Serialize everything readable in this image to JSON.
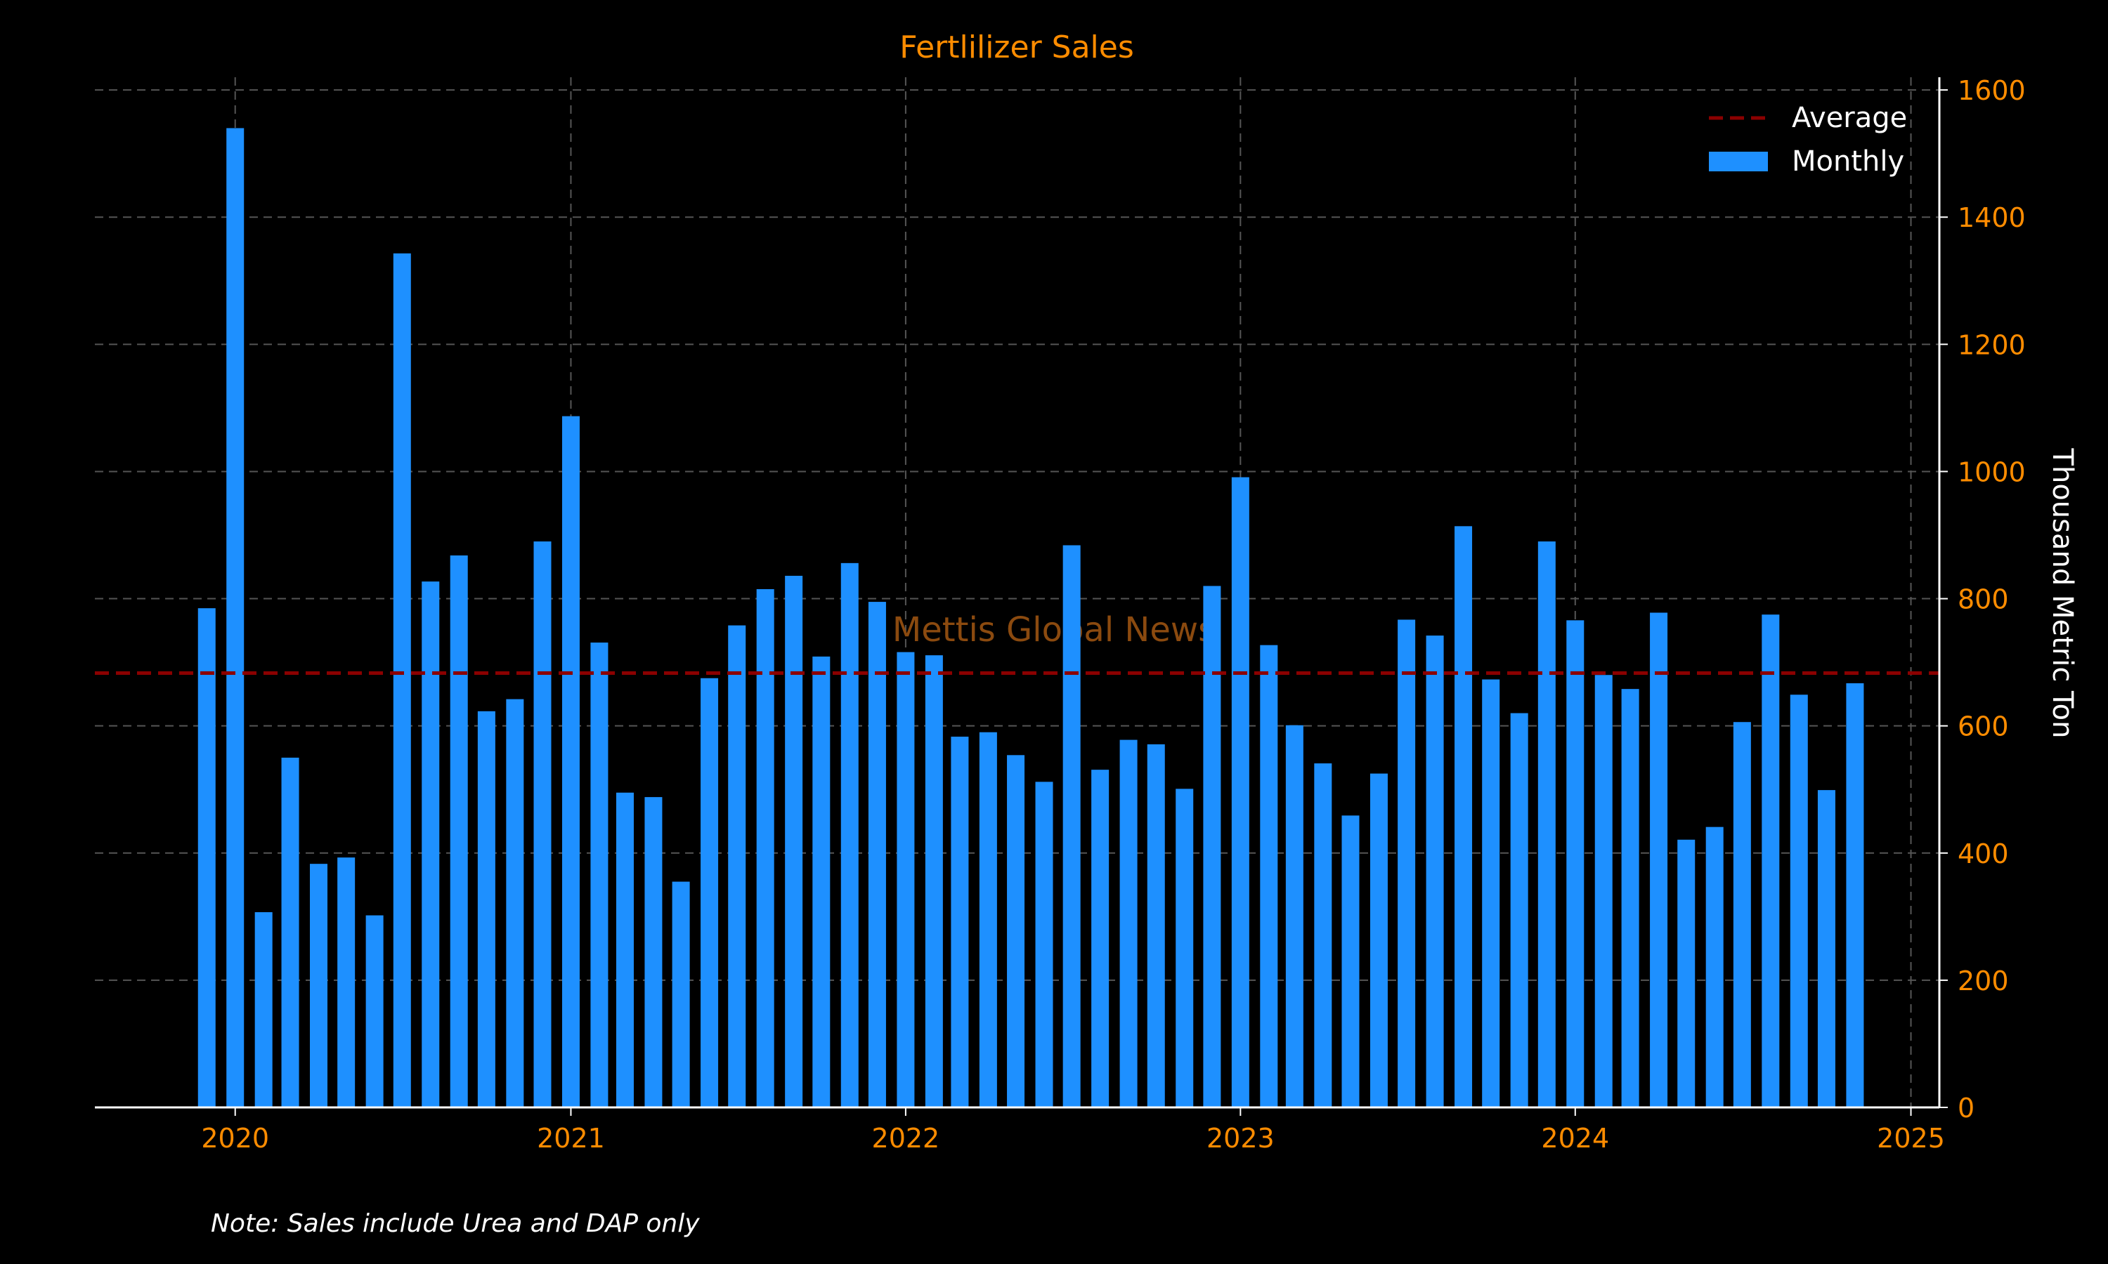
{
  "chart_data": {
    "type": "bar",
    "title": "Fertlilizer Sales",
    "xlabel": "",
    "ylabel": "Thousand Metric Ton",
    "ylim": [
      0,
      1620
    ],
    "xlim": [
      "2019-08-01",
      "2025-02-01"
    ],
    "yticks": [
      0,
      200,
      400,
      600,
      800,
      1000,
      1200,
      1400,
      1600
    ],
    "xticks": [
      "2020",
      "2021",
      "2022",
      "2023",
      "2024",
      "2025"
    ],
    "grid": true,
    "legend_position": "top-right",
    "watermark": "Mettis Global News",
    "note": "Note: Sales include Urea and DAP only",
    "colors": {
      "background": "#000000",
      "bars": "#1e90ff",
      "average": "#8b0000",
      "tick_text": "#ff8c00",
      "title": "#ff8c00",
      "label": "#ffffff",
      "grid": "#555555",
      "watermark": "#8b4a0f"
    },
    "legend": [
      {
        "name": "Average",
        "kind": "dashed-line"
      },
      {
        "name": "Monthly",
        "kind": "bar"
      }
    ],
    "average": 683,
    "dates": [
      "2019-12",
      "2020-01",
      "2020-02",
      "2020-03",
      "2020-04",
      "2020-05",
      "2020-06",
      "2020-07",
      "2020-08",
      "2020-09",
      "2020-10",
      "2020-11",
      "2020-12",
      "2021-01",
      "2021-02",
      "2021-03",
      "2021-04",
      "2021-05",
      "2021-06",
      "2021-07",
      "2021-08",
      "2021-09",
      "2021-10",
      "2021-11",
      "2021-12",
      "2022-01",
      "2022-02",
      "2022-03",
      "2022-04",
      "2022-05",
      "2022-06",
      "2022-07",
      "2022-08",
      "2022-09",
      "2022-10",
      "2022-11",
      "2022-12",
      "2023-01",
      "2023-02",
      "2023-03",
      "2023-04",
      "2023-05",
      "2023-06",
      "2023-07",
      "2023-08",
      "2023-09",
      "2023-10",
      "2023-11",
      "2023-12",
      "2024-01",
      "2024-02",
      "2024-03",
      "2024-04",
      "2024-05",
      "2024-06",
      "2024-07",
      "2024-08",
      "2024-09",
      "2024-10",
      "2024-11"
    ],
    "series": [
      {
        "name": "Monthly",
        "values": [
          785,
          1540,
          307,
          550,
          383,
          393,
          302,
          1343,
          827,
          868,
          623,
          642,
          890,
          1087,
          731,
          495,
          488,
          355,
          675,
          758,
          815,
          836,
          709,
          856,
          795,
          716,
          711,
          583,
          590,
          554,
          512,
          884,
          531,
          578,
          571,
          501,
          820,
          991,
          727,
          601,
          541,
          459,
          525,
          767,
          742,
          914,
          673,
          620,
          890,
          766,
          680,
          658,
          778,
          421,
          441,
          606,
          775,
          649,
          499,
          667
        ]
      }
    ]
  }
}
